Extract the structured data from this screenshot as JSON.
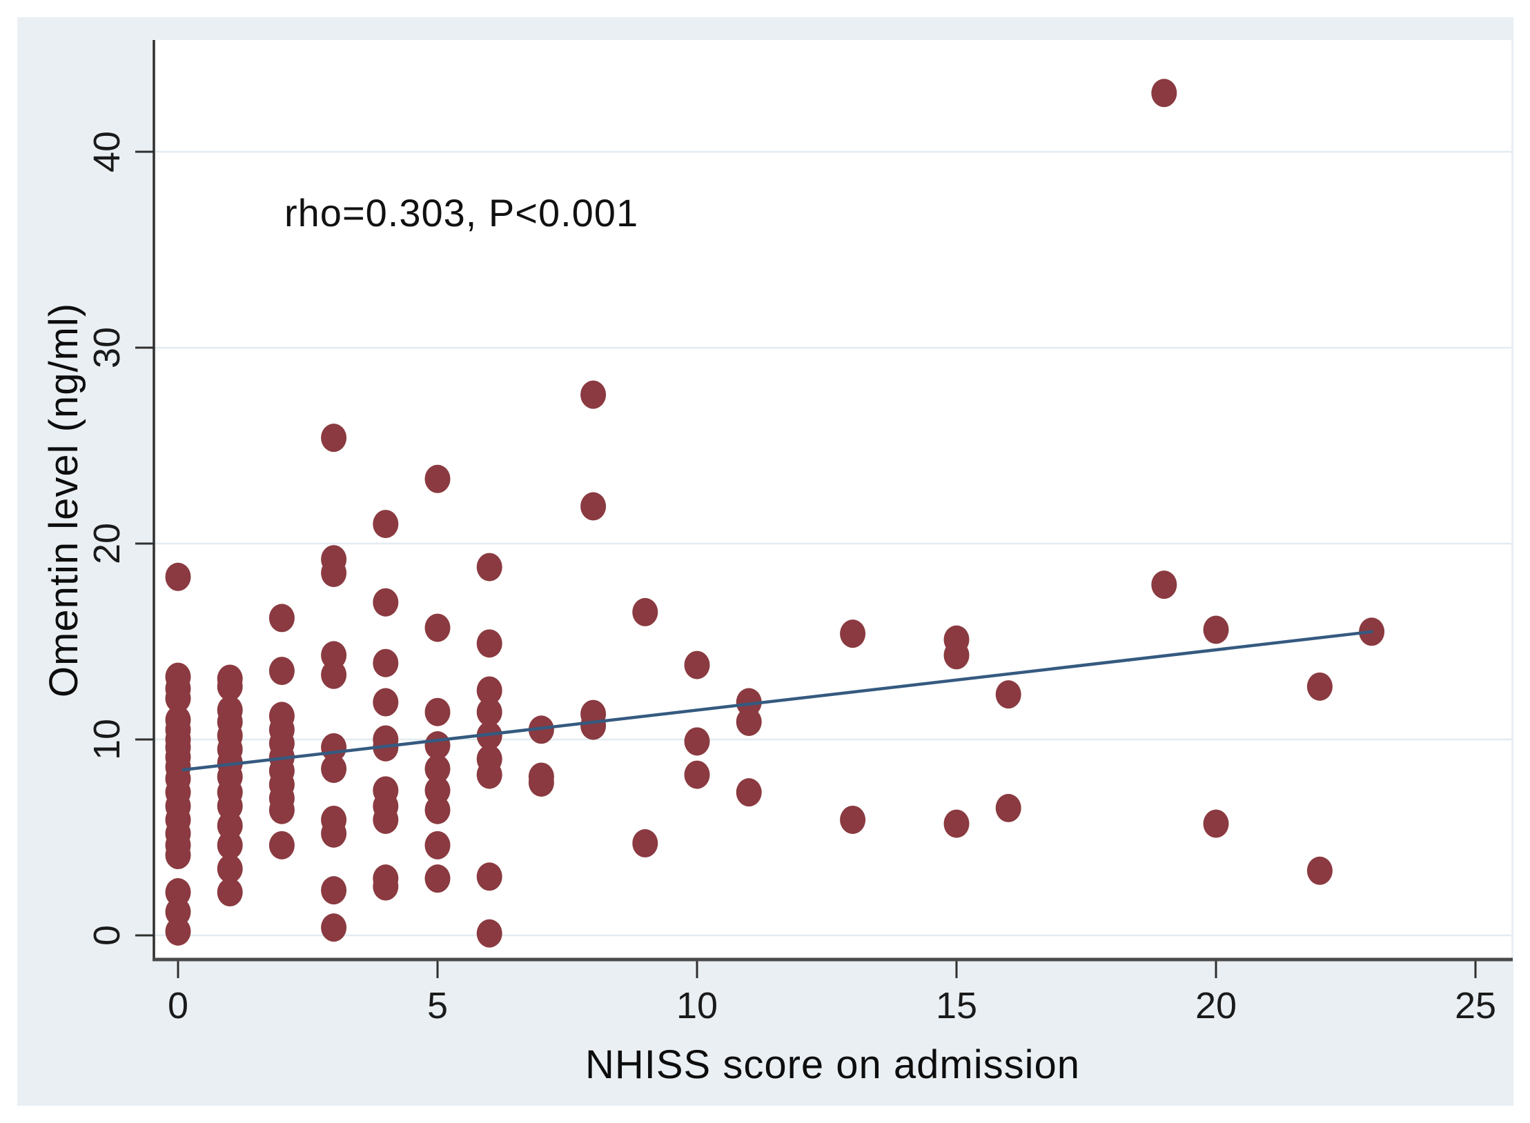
{
  "figure": {
    "kind": "stata-style scatter plot with linear fit",
    "canvas_bg": "#e9eff3",
    "plot_bg": "#ffffff"
  },
  "chart_data": {
    "type": "scatter",
    "title": "",
    "xlabel": "NHISS score on admission",
    "ylabel": "Omentin level (ng/ml)",
    "annotation": "rho=0.303, P<0.001",
    "x_ticks": [
      0,
      5,
      10,
      15,
      20,
      25
    ],
    "y_ticks": [
      0,
      10,
      20,
      30,
      40
    ],
    "xlim": [
      -0.47,
      25.7
    ],
    "ylim": [
      -1.23,
      45.6
    ],
    "grid": "horizontal-only",
    "legend_position": "none",
    "points": [
      [
        0,
        18.3
      ],
      [
        0,
        13.2
      ],
      [
        0,
        12.6
      ],
      [
        0,
        12.1
      ],
      [
        0,
        11.0
      ],
      [
        0,
        10.5
      ],
      [
        0,
        10.0
      ],
      [
        0,
        9.6
      ],
      [
        0,
        9.1
      ],
      [
        0,
        8.6
      ],
      [
        0,
        8.0
      ],
      [
        0,
        7.3
      ],
      [
        0,
        6.6
      ],
      [
        0,
        5.9
      ],
      [
        0,
        5.2
      ],
      [
        0,
        4.6
      ],
      [
        0,
        4.1
      ],
      [
        0,
        2.2
      ],
      [
        0,
        1.2
      ],
      [
        0,
        0.2
      ],
      [
        1,
        13.1
      ],
      [
        1,
        12.7
      ],
      [
        1,
        11.5
      ],
      [
        1,
        10.9
      ],
      [
        1,
        10.2
      ],
      [
        1,
        9.5
      ],
      [
        1,
        8.8
      ],
      [
        1,
        8.1
      ],
      [
        1,
        7.3
      ],
      [
        1,
        6.6
      ],
      [
        1,
        5.6
      ],
      [
        1,
        4.6
      ],
      [
        1,
        3.4
      ],
      [
        1,
        2.2
      ],
      [
        2,
        16.2
      ],
      [
        2,
        13.5
      ],
      [
        2,
        11.2
      ],
      [
        2,
        10.5
      ],
      [
        2,
        9.8
      ],
      [
        2,
        9.1
      ],
      [
        2,
        8.4
      ],
      [
        2,
        7.7
      ],
      [
        2,
        7.0
      ],
      [
        2,
        6.4
      ],
      [
        2,
        4.6
      ],
      [
        3,
        25.4
      ],
      [
        3,
        19.2
      ],
      [
        3,
        18.5
      ],
      [
        3,
        14.3
      ],
      [
        3,
        13.3
      ],
      [
        3,
        9.6
      ],
      [
        3,
        8.5
      ],
      [
        3,
        5.9
      ],
      [
        3,
        5.2
      ],
      [
        3,
        2.3
      ],
      [
        3,
        0.4
      ],
      [
        4,
        21.0
      ],
      [
        4,
        17.0
      ],
      [
        4,
        13.9
      ],
      [
        4,
        11.9
      ],
      [
        4,
        10.0
      ],
      [
        4,
        9.6
      ],
      [
        4,
        7.4
      ],
      [
        4,
        6.6
      ],
      [
        4,
        5.9
      ],
      [
        4,
        2.9
      ],
      [
        4,
        2.5
      ],
      [
        5,
        23.3
      ],
      [
        5,
        15.7
      ],
      [
        5,
        11.4
      ],
      [
        5,
        9.7
      ],
      [
        5,
        8.5
      ],
      [
        5,
        7.4
      ],
      [
        5,
        6.4
      ],
      [
        5,
        4.6
      ],
      [
        5,
        2.9
      ],
      [
        6,
        18.8
      ],
      [
        6,
        14.9
      ],
      [
        6,
        12.5
      ],
      [
        6,
        11.4
      ],
      [
        6,
        10.2
      ],
      [
        6,
        9.0
      ],
      [
        6,
        8.2
      ],
      [
        6,
        3.0
      ],
      [
        6,
        0.1
      ],
      [
        7,
        10.5
      ],
      [
        7,
        8.1
      ],
      [
        7,
        7.8
      ],
      [
        8,
        27.6
      ],
      [
        8,
        21.9
      ],
      [
        8,
        11.3
      ],
      [
        8,
        10.7
      ],
      [
        9,
        16.5
      ],
      [
        9,
        4.7
      ],
      [
        10,
        13.8
      ],
      [
        10,
        9.9
      ],
      [
        10,
        8.2
      ],
      [
        11,
        11.9
      ],
      [
        11,
        10.9
      ],
      [
        11,
        7.3
      ],
      [
        13,
        15.4
      ],
      [
        13,
        5.9
      ],
      [
        15,
        15.1
      ],
      [
        15,
        14.3
      ],
      [
        15,
        5.7
      ],
      [
        16,
        12.3
      ],
      [
        16,
        6.5
      ],
      [
        19,
        43.0
      ],
      [
        19,
        17.9
      ],
      [
        20,
        15.6
      ],
      [
        20,
        5.7
      ],
      [
        22,
        12.7
      ],
      [
        22,
        3.3
      ],
      [
        23,
        15.5
      ]
    ],
    "trend_line": {
      "x1": 0.1,
      "y1": 8.45,
      "x2": 23.0,
      "y2": 15.5
    },
    "colors": {
      "marker": "#8a3a40",
      "trend": "#355a80",
      "grid": "#e2ecf1",
      "axis": "#2f2f2f",
      "text": "#0d0d0d"
    }
  }
}
